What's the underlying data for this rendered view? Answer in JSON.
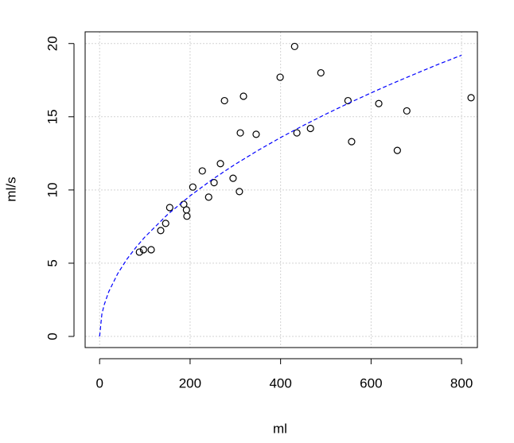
{
  "chart_data": {
    "type": "scatter",
    "xlabel": "ml",
    "ylabel": "ml/s",
    "xlim": [
      -32,
      835
    ],
    "ylim": [
      -0.76,
      20.8
    ],
    "xticks": [
      0,
      200,
      400,
      600,
      800
    ],
    "yticks": [
      0,
      5,
      10,
      15,
      20
    ],
    "grid": true,
    "series": [
      {
        "type": "scatter",
        "color": "#000000",
        "x": [
          88,
          97,
          114,
          135,
          146,
          155,
          186,
          192,
          193,
          206,
          227,
          241,
          253,
          267,
          276,
          295,
          309,
          311,
          318,
          346,
          399,
          431,
          436,
          466,
          489,
          549,
          557,
          617,
          658,
          679,
          821
        ],
        "values": [
          5.76,
          5.92,
          5.92,
          7.23,
          7.72,
          8.8,
          9.02,
          8.64,
          8.21,
          10.2,
          11.3,
          9.51,
          10.5,
          11.8,
          16.1,
          10.8,
          9.89,
          13.9,
          16.4,
          13.8,
          17.7,
          19.8,
          13.9,
          14.2,
          18.0,
          16.1,
          13.3,
          15.9,
          12.7,
          15.4,
          16.3
        ]
      },
      {
        "type": "line",
        "color": "#0000ff",
        "dashed": true,
        "x": [
          0,
          5,
          10,
          20,
          40,
          60,
          80,
          100,
          150,
          200,
          250,
          300,
          350,
          400,
          450,
          500,
          550,
          600,
          650,
          700,
          750,
          800
        ],
        "values": [
          0,
          1.52,
          2.15,
          3.04,
          4.29,
          5.26,
          6.07,
          6.79,
          8.32,
          9.6,
          10.74,
          11.76,
          12.7,
          13.58,
          14.4,
          15.18,
          15.92,
          16.63,
          17.31,
          17.96,
          18.6,
          19.2
        ]
      }
    ]
  }
}
